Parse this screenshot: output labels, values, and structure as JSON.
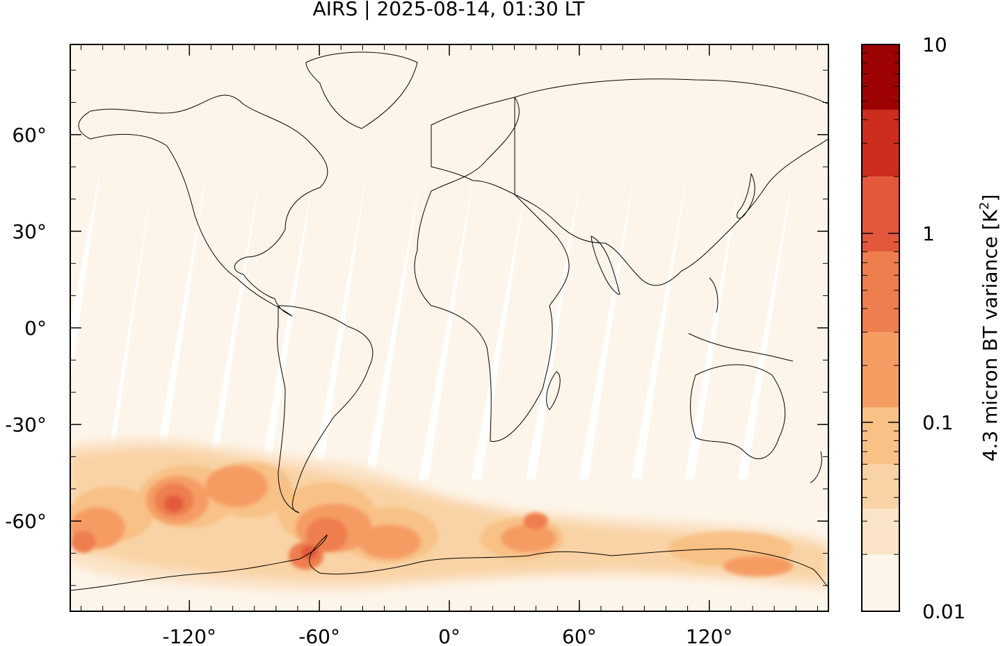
{
  "title": "AIRS | 2025-08-14, 01:30 LT",
  "map": {
    "projection": "equirectangular",
    "lon_range": [
      -175,
      175
    ],
    "lat_range": [
      -88,
      88
    ],
    "y_ticks": [
      {
        "value": 60,
        "label": "60°"
      },
      {
        "value": 30,
        "label": "30°"
      },
      {
        "value": 0,
        "label": "0°"
      },
      {
        "value": -30,
        "label": "-30°"
      },
      {
        "value": -60,
        "label": "-60°"
      }
    ],
    "x_ticks": [
      {
        "value": -120,
        "label": "-120°"
      },
      {
        "value": -60,
        "label": "-60°"
      },
      {
        "value": 0,
        "label": "0°"
      },
      {
        "value": 60,
        "label": "60°"
      },
      {
        "value": 120,
        "label": "120°"
      }
    ],
    "background_color": "#fdf5ea",
    "coastline_color": "#000000"
  },
  "colorbar": {
    "label": "4.3 micron BT variance [K",
    "label_sup": "2",
    "label_close": "]",
    "scale": "log",
    "range": [
      0.01,
      10
    ],
    "tick_labels": [
      {
        "value": 10,
        "label": "10"
      },
      {
        "value": 1,
        "label": "1"
      },
      {
        "value": 0.1,
        "label": "0.1"
      },
      {
        "value": 0.01,
        "label": "0.01"
      }
    ],
    "colors": [
      "#fdf5ea",
      "#fbe3c8",
      "#f9d3a5",
      "#f8c186",
      "#f59c63",
      "#ee7e4d",
      "#e3583b",
      "#cc2d1d",
      "#9e0103"
    ]
  }
}
